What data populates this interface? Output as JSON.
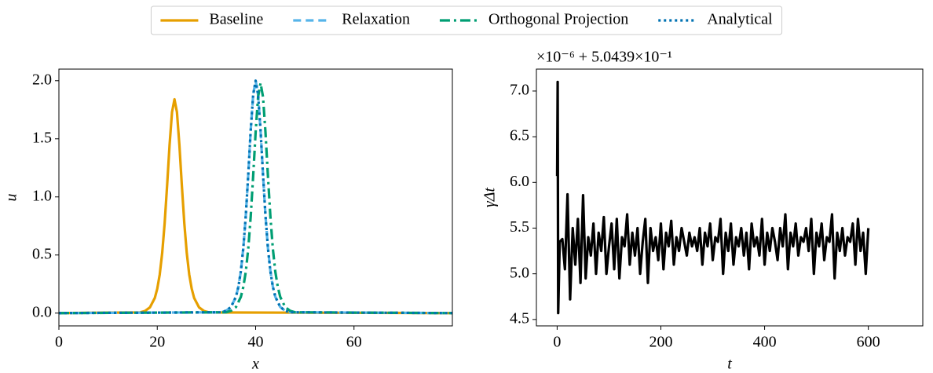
{
  "chart_data": [
    {
      "type": "line",
      "xlabel": "x",
      "ylabel": "u",
      "xlim": [
        0,
        80
      ],
      "xticks": [
        0,
        20,
        40,
        60
      ],
      "ylim": [
        -0.11,
        2.1
      ],
      "yticks": [
        {
          "value": 0,
          "label": "0.0"
        },
        {
          "value": 0.5,
          "label": "0.5"
        },
        {
          "value": 1,
          "label": "1.0"
        },
        {
          "value": 1.5,
          "label": "1.5"
        },
        {
          "value": 2,
          "label": "2.0"
        }
      ],
      "legend": "top",
      "series": [
        {
          "name": "Baseline",
          "color": "#e69f00",
          "dash": "solid",
          "x": [
            0,
            16.5,
            17.5,
            18.5,
            19.5,
            20,
            20.5,
            21,
            21.5,
            22,
            22.5,
            23,
            23.5,
            24,
            24.5,
            25,
            25.5,
            26,
            26.5,
            27,
            27.5,
            28.5,
            29.5,
            30.5,
            80
          ],
          "values": [
            0,
            0.006,
            0.018,
            0.049,
            0.13,
            0.21,
            0.332,
            0.516,
            0.773,
            1.098,
            1.447,
            1.73,
            1.84,
            1.73,
            1.447,
            1.098,
            0.773,
            0.516,
            0.332,
            0.21,
            0.13,
            0.049,
            0.018,
            0.006,
            0
          ]
        },
        {
          "name": "Relaxation",
          "color": "#56b4e9",
          "dash": "dashed",
          "x": [
            0,
            33,
            34,
            35,
            36,
            36.5,
            37,
            37.5,
            38,
            38.5,
            39,
            39.5,
            40,
            40.5,
            41,
            41.5,
            42,
            42.5,
            43,
            43.5,
            44,
            45,
            46,
            47,
            80
          ],
          "values": [
            0,
            0.007,
            0.02,
            0.053,
            0.141,
            0.228,
            0.361,
            0.561,
            0.84,
            1.193,
            1.573,
            1.88,
            2,
            1.88,
            1.573,
            1.193,
            0.84,
            0.561,
            0.361,
            0.228,
            0.141,
            0.053,
            0.02,
            0.007,
            0
          ]
        },
        {
          "name": "Orthogonal Projection",
          "color": "#009e73",
          "dash": "dashdot",
          "x": [
            0,
            34,
            35,
            36,
            37,
            37.5,
            38,
            38.5,
            39,
            39.5,
            40,
            40.5,
            41,
            41.5,
            42,
            42.5,
            43,
            43.5,
            44,
            44.5,
            45,
            46,
            47,
            48,
            80
          ],
          "values": [
            0,
            0.007,
            0.02,
            0.052,
            0.14,
            0.226,
            0.357,
            0.555,
            0.832,
            1.181,
            1.557,
            1.861,
            1.98,
            1.861,
            1.557,
            1.181,
            0.832,
            0.555,
            0.357,
            0.226,
            0.14,
            0.052,
            0.02,
            0.007,
            0
          ]
        },
        {
          "name": "Analytical",
          "color": "#0072b2",
          "dash": "dotted",
          "x": [
            0,
            33,
            34,
            35,
            36,
            36.5,
            37,
            37.5,
            38,
            38.5,
            39,
            39.5,
            40,
            40.5,
            41,
            41.5,
            42,
            42.5,
            43,
            43.5,
            44,
            45,
            46,
            47,
            80
          ],
          "values": [
            0,
            0.007,
            0.02,
            0.053,
            0.141,
            0.228,
            0.361,
            0.561,
            0.84,
            1.193,
            1.573,
            1.88,
            2,
            1.88,
            1.573,
            1.193,
            0.84,
            0.561,
            0.361,
            0.228,
            0.141,
            0.053,
            0.02,
            0.007,
            0
          ]
        }
      ]
    },
    {
      "type": "line",
      "xlabel": "t",
      "ylabel": "γΔt",
      "offset_text": "×10⁻⁶ + 5.0439×10⁻¹",
      "xlim": [
        -40,
        705
      ],
      "xticks": [
        0,
        200,
        400,
        600
      ],
      "ylim": [
        4.43,
        7.24
      ],
      "yticks": [
        4.5,
        {
          "value": 5,
          "label": "5.0"
        },
        5.5,
        {
          "value": 6,
          "label": "6.0"
        },
        6.5,
        {
          "value": 7,
          "label": "7.0"
        }
      ],
      "series": [
        {
          "color": "#000000",
          "dash": "solid",
          "x": [
            0,
            1,
            2,
            5,
            10,
            15,
            20,
            25,
            30,
            35,
            40,
            45,
            50,
            55,
            60,
            65,
            70,
            75,
            80,
            85,
            90,
            95,
            100,
            105,
            110,
            115,
            120,
            125,
            130,
            135,
            140,
            145,
            150,
            155,
            160,
            165,
            170,
            175,
            180,
            185,
            190,
            195,
            200,
            205,
            210,
            215,
            220,
            225,
            230,
            235,
            240,
            245,
            250,
            255,
            260,
            265,
            270,
            275,
            280,
            285,
            290,
            295,
            300,
            305,
            310,
            315,
            320,
            325,
            330,
            335,
            340,
            345,
            350,
            355,
            360,
            365,
            370,
            375,
            380,
            385,
            390,
            395,
            400,
            405,
            410,
            415,
            420,
            425,
            430,
            435,
            440,
            445,
            450,
            455,
            460,
            465,
            470,
            475,
            480,
            485,
            490,
            495,
            500,
            505,
            510,
            515,
            520,
            525,
            530,
            535,
            540,
            545,
            550,
            555,
            560,
            565,
            570,
            575,
            580,
            585,
            590,
            595,
            600
          ],
          "values": [
            6.07,
            7.1,
            4.57,
            5.35,
            5.38,
            5.05,
            5.87,
            4.72,
            5.5,
            5.1,
            5.6,
            4.9,
            5.86,
            4.95,
            5.4,
            5.2,
            5.55,
            5.0,
            5.45,
            5.25,
            5.62,
            5.0,
            5.3,
            5.55,
            5.05,
            5.6,
            4.95,
            5.4,
            5.3,
            5.65,
            5.1,
            5.45,
            5.2,
            5.5,
            5.0,
            5.35,
            5.6,
            4.9,
            5.5,
            5.25,
            5.4,
            5.15,
            5.55,
            5.05,
            5.45,
            5.3,
            5.58,
            5.1,
            5.4,
            5.25,
            5.5,
            5.35,
            5.2,
            5.45,
            5.3,
            5.4,
            5.25,
            5.5,
            5.1,
            5.45,
            5.3,
            5.55,
            5.15,
            5.4,
            5.35,
            5.6,
            5.0,
            5.45,
            5.25,
            5.55,
            5.1,
            5.4,
            5.3,
            5.5,
            5.2,
            5.45,
            5.05,
            5.55,
            5.3,
            5.4,
            5.2,
            5.6,
            5.1,
            5.45,
            5.25,
            5.5,
            5.35,
            5.15,
            5.5,
            5.3,
            5.65,
            5.05,
            5.45,
            5.3,
            5.55,
            5.2,
            5.4,
            5.35,
            5.5,
            5.25,
            5.6,
            5.0,
            5.45,
            5.3,
            5.55,
            5.15,
            5.4,
            5.35,
            5.65,
            4.95,
            5.45,
            5.25,
            5.5,
            5.2,
            5.4,
            5.35,
            5.55,
            5.1,
            5.6,
            5.25,
            5.45,
            5.0,
            5.5
          ]
        }
      ]
    }
  ]
}
